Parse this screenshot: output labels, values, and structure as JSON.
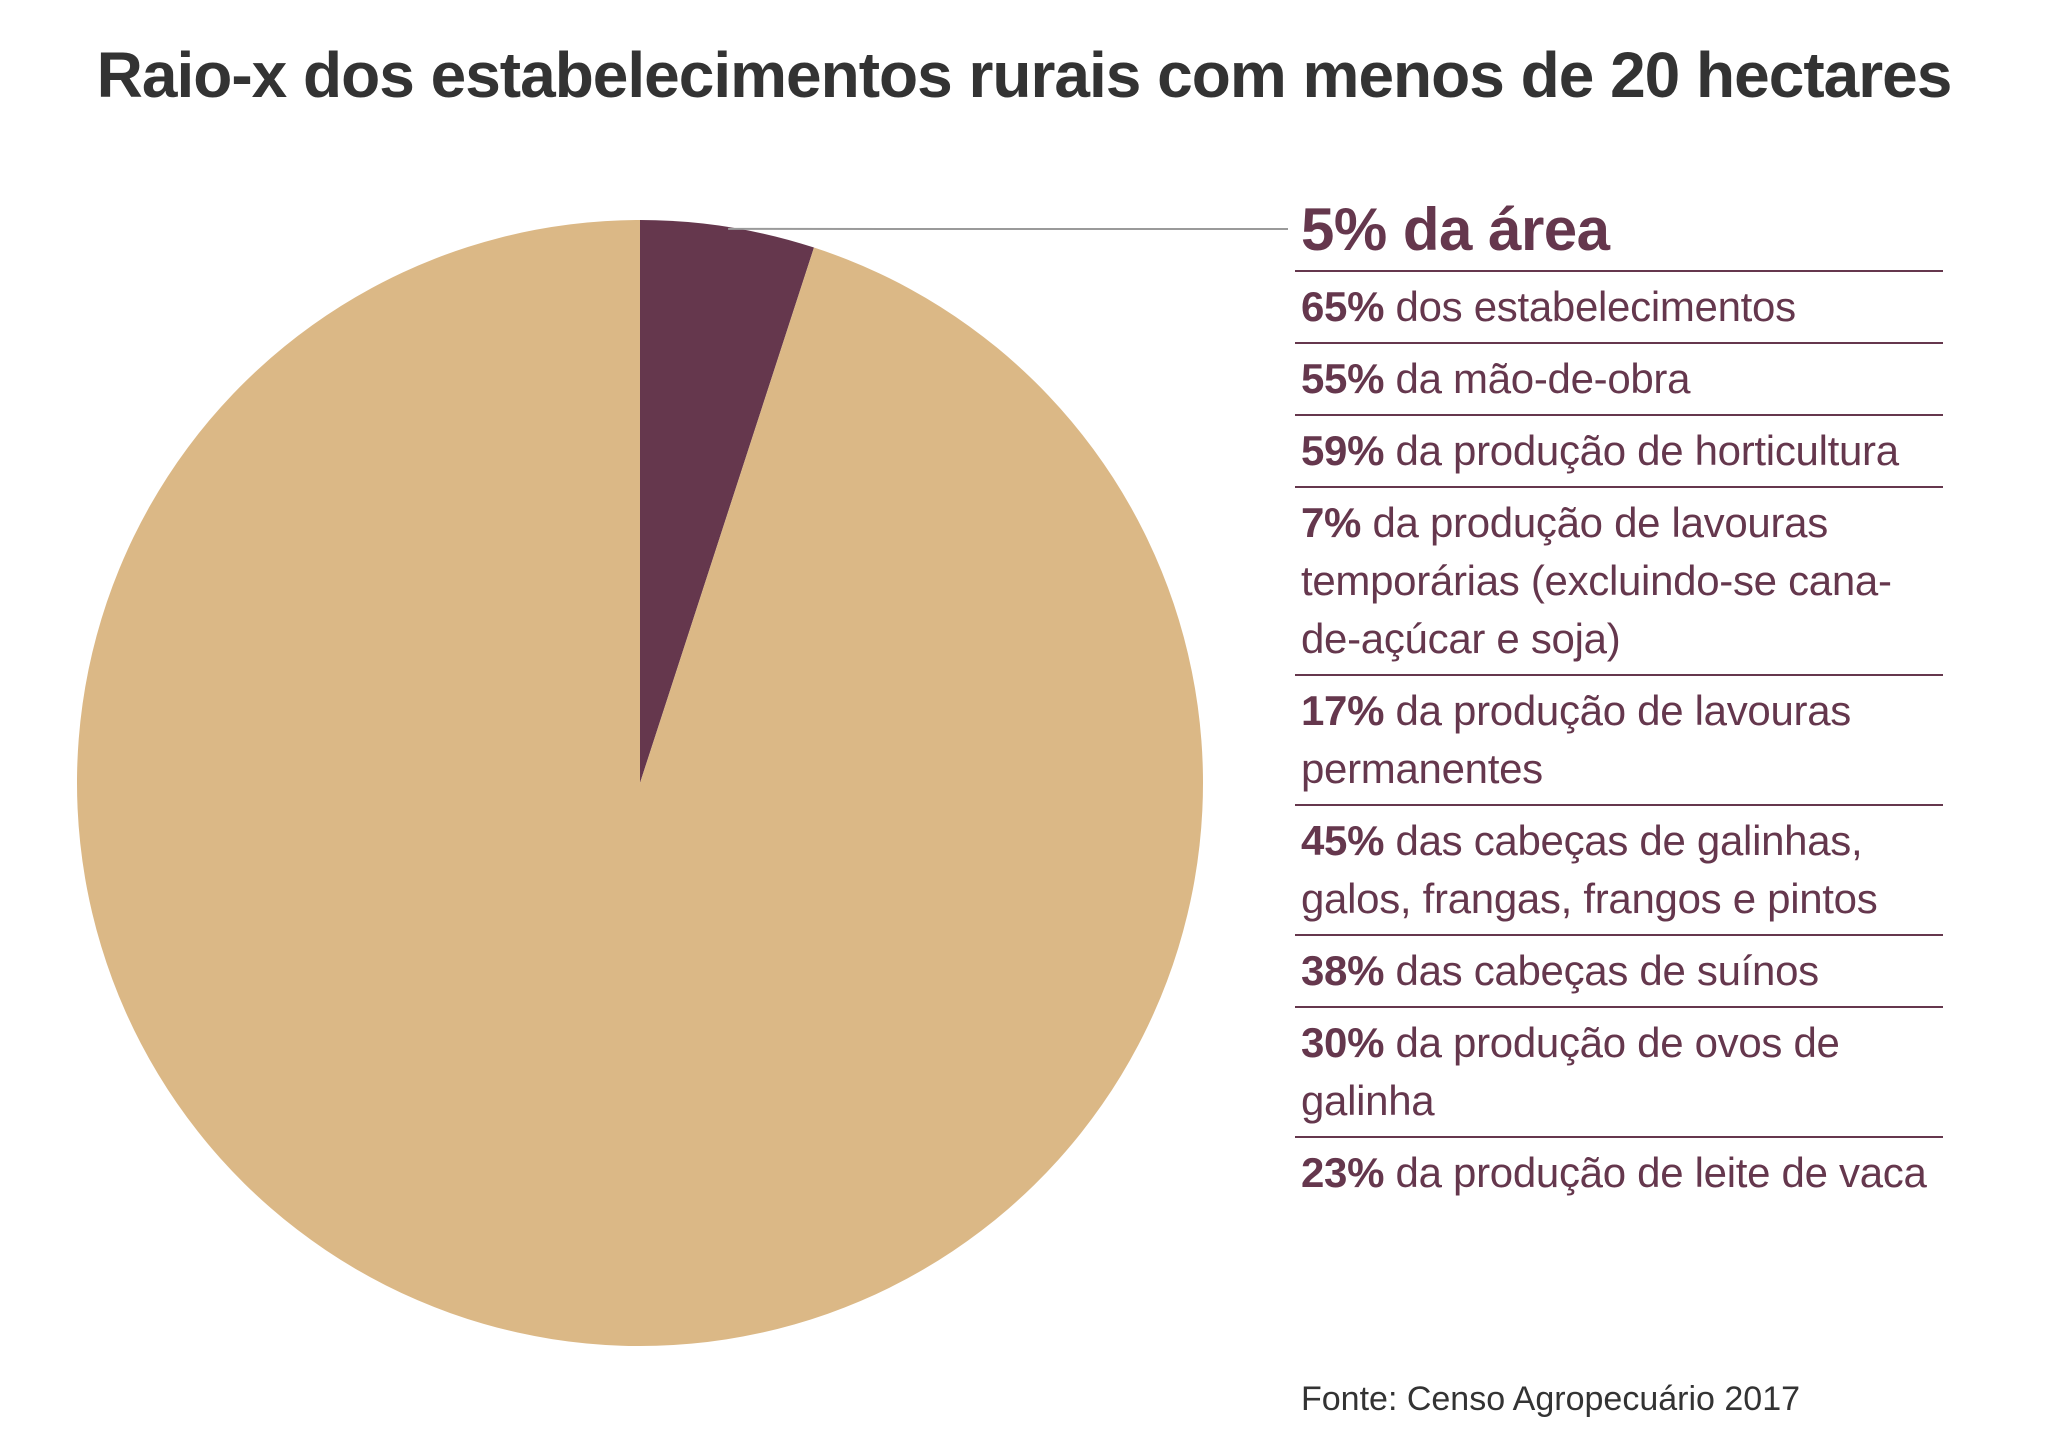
{
  "chart_data": {
    "type": "pie",
    "title": "Raio-x dos estabelecimentos rurais com menos de 20 hectares",
    "slices": [
      {
        "label": "5% da área",
        "value": 5,
        "color": "#65374d"
      },
      {
        "label": "",
        "value": 95,
        "color": "#dbb886"
      }
    ],
    "highlight": "5% da área",
    "facts": [
      {
        "pct": "65%",
        "text": " dos estabelecimentos"
      },
      {
        "pct": "55%",
        "text": " da mão-de-obra"
      },
      {
        "pct": "59%",
        "text": " da produção de horticultura"
      },
      {
        "pct": "7%",
        "text": " da produção de lavouras temporárias (excluindo-se cana-de-açúcar e soja)"
      },
      {
        "pct": "17%",
        "text": " da produção de lavouras permanentes"
      },
      {
        "pct": "45%",
        "text": " das cabeças de galinhas, galos, frangas, frangos e pintos"
      },
      {
        "pct": "38%",
        "text": " das cabeças de suínos"
      },
      {
        "pct": "30%",
        "text": " da produção de ovos de galinha"
      },
      {
        "pct": "23%",
        "text": " da produção de leite de vaca"
      }
    ],
    "source": "Fonte: Censo Agropecuário 2017",
    "legend": "right"
  }
}
